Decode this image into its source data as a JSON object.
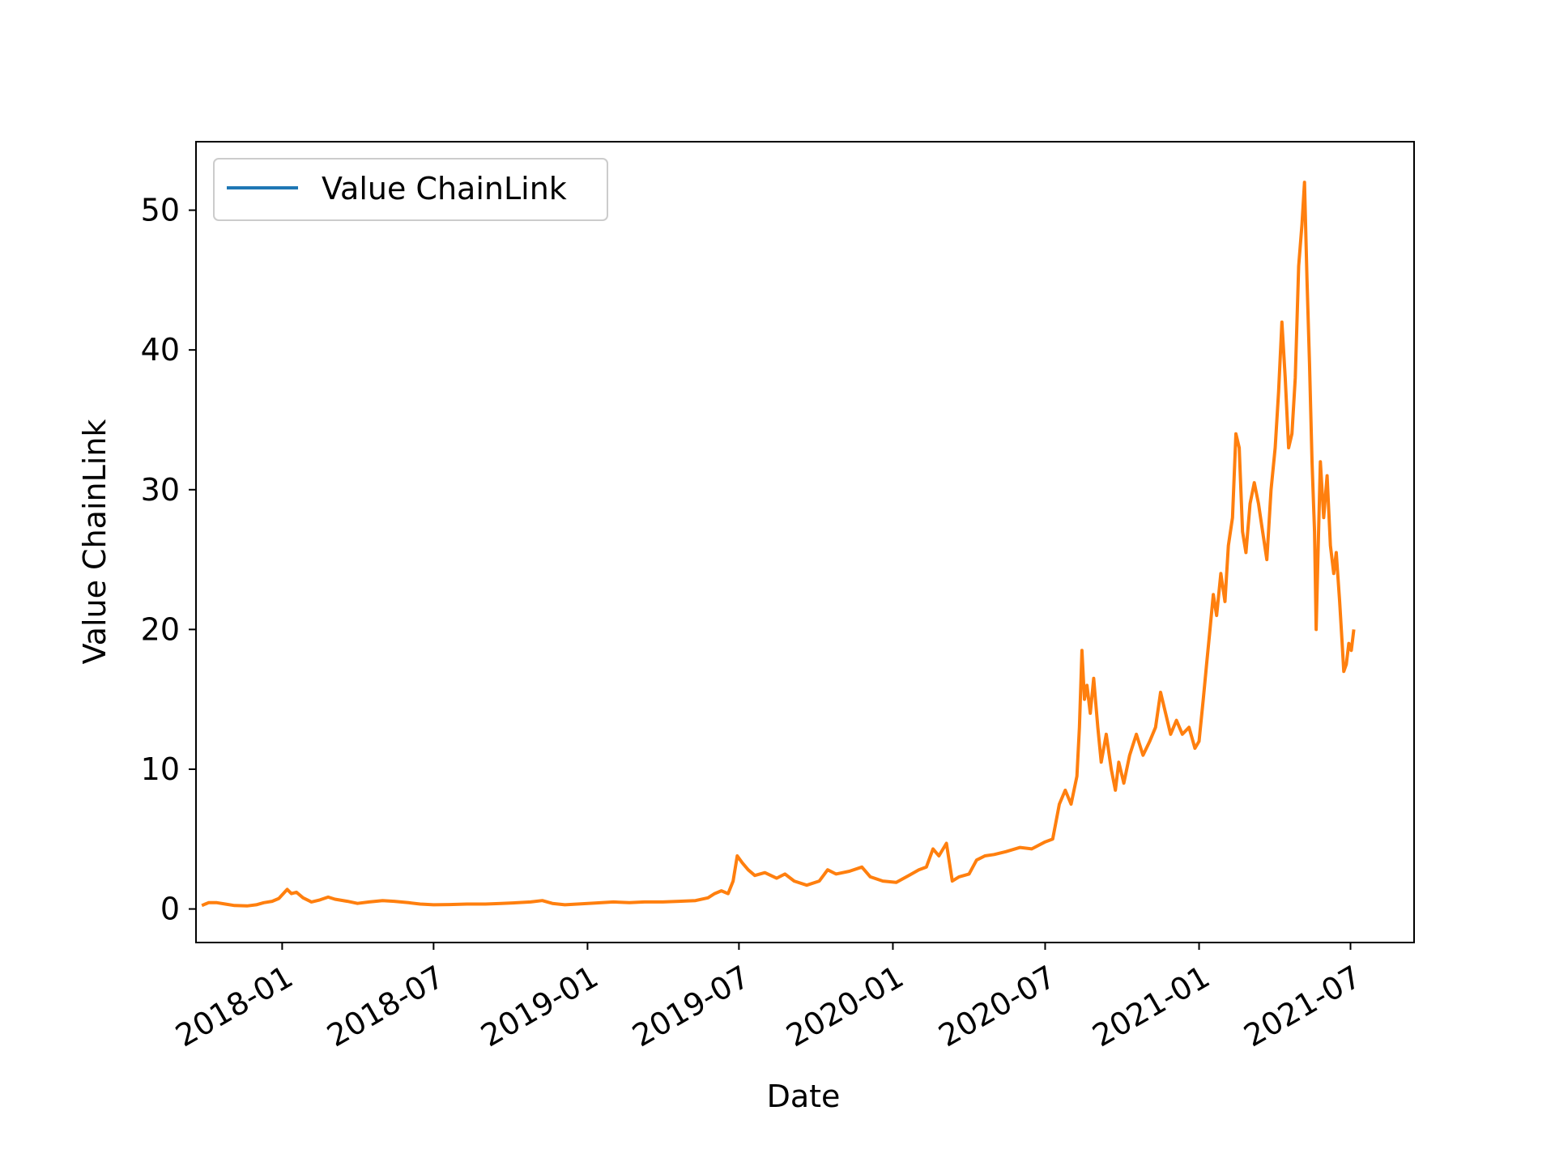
{
  "colors": {
    "legend_line": "#1f77b4",
    "series_line": "#ff7f0e",
    "axis": "#000000",
    "background": "#ffffff"
  },
  "chart_data": {
    "type": "line",
    "title": "",
    "xlabel": "Date",
    "ylabel": "Value ChainLink",
    "x_scale": "date",
    "xlim": [
      "2017-09-20",
      "2021-09-15"
    ],
    "ylim": [
      -2.4,
      54.9
    ],
    "x_ticks": [
      "2018-01",
      "2018-07",
      "2019-01",
      "2019-07",
      "2020-01",
      "2020-07",
      "2021-01",
      "2021-07"
    ],
    "y_ticks": [
      0,
      10,
      20,
      30,
      40,
      50
    ],
    "grid": false,
    "legend": {
      "position": "top-left",
      "entries": [
        "Value ChainLink"
      ]
    },
    "series": [
      {
        "name": "Value ChainLink",
        "points": [
          [
            "2017-09-27",
            0.25
          ],
          [
            "2017-10-05",
            0.45
          ],
          [
            "2017-10-15",
            0.45
          ],
          [
            "2017-10-25",
            0.35
          ],
          [
            "2017-11-05",
            0.25
          ],
          [
            "2017-11-20",
            0.22
          ],
          [
            "2017-12-01",
            0.3
          ],
          [
            "2017-12-10",
            0.45
          ],
          [
            "2017-12-20",
            0.55
          ],
          [
            "2017-12-28",
            0.75
          ],
          [
            "2018-01-07",
            1.4
          ],
          [
            "2018-01-12",
            1.1
          ],
          [
            "2018-01-18",
            1.2
          ],
          [
            "2018-01-26",
            0.8
          ],
          [
            "2018-02-05",
            0.5
          ],
          [
            "2018-02-15",
            0.65
          ],
          [
            "2018-02-25",
            0.85
          ],
          [
            "2018-03-05",
            0.7
          ],
          [
            "2018-03-20",
            0.55
          ],
          [
            "2018-04-01",
            0.4
          ],
          [
            "2018-04-15",
            0.5
          ],
          [
            "2018-05-01",
            0.6
          ],
          [
            "2018-05-15",
            0.55
          ],
          [
            "2018-06-01",
            0.45
          ],
          [
            "2018-06-15",
            0.35
          ],
          [
            "2018-07-01",
            0.3
          ],
          [
            "2018-07-20",
            0.32
          ],
          [
            "2018-08-10",
            0.35
          ],
          [
            "2018-09-01",
            0.35
          ],
          [
            "2018-09-20",
            0.4
          ],
          [
            "2018-10-10",
            0.45
          ],
          [
            "2018-10-25",
            0.5
          ],
          [
            "2018-11-08",
            0.6
          ],
          [
            "2018-11-20",
            0.4
          ],
          [
            "2018-12-05",
            0.3
          ],
          [
            "2018-12-20",
            0.35
          ],
          [
            "2019-01-10",
            0.42
          ],
          [
            "2019-02-01",
            0.5
          ],
          [
            "2019-02-20",
            0.45
          ],
          [
            "2019-03-10",
            0.5
          ],
          [
            "2019-04-01",
            0.5
          ],
          [
            "2019-04-20",
            0.55
          ],
          [
            "2019-05-10",
            0.6
          ],
          [
            "2019-05-25",
            0.8
          ],
          [
            "2019-06-02",
            1.1
          ],
          [
            "2019-06-10",
            1.3
          ],
          [
            "2019-06-18",
            1.1
          ],
          [
            "2019-06-24",
            2.0
          ],
          [
            "2019-06-29",
            3.8
          ],
          [
            "2019-07-05",
            3.3
          ],
          [
            "2019-07-12",
            2.8
          ],
          [
            "2019-07-20",
            2.4
          ],
          [
            "2019-08-01",
            2.6
          ],
          [
            "2019-08-15",
            2.2
          ],
          [
            "2019-08-25",
            2.5
          ],
          [
            "2019-09-05",
            2.0
          ],
          [
            "2019-09-20",
            1.7
          ],
          [
            "2019-10-05",
            2.0
          ],
          [
            "2019-10-15",
            2.8
          ],
          [
            "2019-10-25",
            2.5
          ],
          [
            "2019-11-10",
            2.7
          ],
          [
            "2019-11-25",
            3.0
          ],
          [
            "2019-12-05",
            2.3
          ],
          [
            "2019-12-20",
            2.0
          ],
          [
            "2020-01-05",
            1.9
          ],
          [
            "2020-01-20",
            2.4
          ],
          [
            "2020-02-01",
            2.8
          ],
          [
            "2020-02-10",
            3.0
          ],
          [
            "2020-02-18",
            4.3
          ],
          [
            "2020-02-25",
            3.8
          ],
          [
            "2020-03-05",
            4.7
          ],
          [
            "2020-03-12",
            2.0
          ],
          [
            "2020-03-20",
            2.3
          ],
          [
            "2020-04-01",
            2.5
          ],
          [
            "2020-04-10",
            3.5
          ],
          [
            "2020-04-20",
            3.8
          ],
          [
            "2020-05-01",
            3.9
          ],
          [
            "2020-05-15",
            4.1
          ],
          [
            "2020-06-01",
            4.4
          ],
          [
            "2020-06-15",
            4.3
          ],
          [
            "2020-07-01",
            4.8
          ],
          [
            "2020-07-10",
            5.0
          ],
          [
            "2020-07-18",
            7.5
          ],
          [
            "2020-07-25",
            8.5
          ],
          [
            "2020-08-01",
            7.5
          ],
          [
            "2020-08-08",
            9.5
          ],
          [
            "2020-08-11",
            13.0
          ],
          [
            "2020-08-14",
            18.5
          ],
          [
            "2020-08-17",
            15.0
          ],
          [
            "2020-08-20",
            16.0
          ],
          [
            "2020-08-24",
            14.0
          ],
          [
            "2020-08-28",
            16.5
          ],
          [
            "2020-09-02",
            13.0
          ],
          [
            "2020-09-06",
            10.5
          ],
          [
            "2020-09-12",
            12.5
          ],
          [
            "2020-09-18",
            10.0
          ],
          [
            "2020-09-23",
            8.5
          ],
          [
            "2020-09-27",
            10.5
          ],
          [
            "2020-10-03",
            9.0
          ],
          [
            "2020-10-10",
            11.0
          ],
          [
            "2020-10-18",
            12.5
          ],
          [
            "2020-10-26",
            11.0
          ],
          [
            "2020-11-03",
            12.0
          ],
          [
            "2020-11-10",
            13.0
          ],
          [
            "2020-11-16",
            15.5
          ],
          [
            "2020-11-22",
            14.0
          ],
          [
            "2020-11-28",
            12.5
          ],
          [
            "2020-12-05",
            13.5
          ],
          [
            "2020-12-12",
            12.5
          ],
          [
            "2020-12-20",
            13.0
          ],
          [
            "2020-12-27",
            11.5
          ],
          [
            "2021-01-01",
            12.0
          ],
          [
            "2021-01-06",
            15.0
          ],
          [
            "2021-01-10",
            17.5
          ],
          [
            "2021-01-14",
            20.0
          ],
          [
            "2021-01-18",
            22.5
          ],
          [
            "2021-01-22",
            21.0
          ],
          [
            "2021-01-27",
            24.0
          ],
          [
            "2021-02-01",
            22.0
          ],
          [
            "2021-02-05",
            26.0
          ],
          [
            "2021-02-10",
            28.0
          ],
          [
            "2021-02-14",
            34.0
          ],
          [
            "2021-02-18",
            33.0
          ],
          [
            "2021-02-22",
            27.0
          ],
          [
            "2021-02-26",
            25.5
          ],
          [
            "2021-03-03",
            29.0
          ],
          [
            "2021-03-08",
            30.5
          ],
          [
            "2021-03-13",
            29.0
          ],
          [
            "2021-03-18",
            27.0
          ],
          [
            "2021-03-23",
            25.0
          ],
          [
            "2021-03-28",
            30.0
          ],
          [
            "2021-04-02",
            33.0
          ],
          [
            "2021-04-06",
            37.0
          ],
          [
            "2021-04-10",
            42.0
          ],
          [
            "2021-04-14",
            38.0
          ],
          [
            "2021-04-18",
            33.0
          ],
          [
            "2021-04-22",
            34.0
          ],
          [
            "2021-04-26",
            38.0
          ],
          [
            "2021-04-30",
            46.0
          ],
          [
            "2021-05-04",
            49.0
          ],
          [
            "2021-05-07",
            52.0
          ],
          [
            "2021-05-10",
            45.0
          ],
          [
            "2021-05-13",
            39.0
          ],
          [
            "2021-05-16",
            32.0
          ],
          [
            "2021-05-19",
            27.0
          ],
          [
            "2021-05-21",
            20.0
          ],
          [
            "2021-05-23",
            25.0
          ],
          [
            "2021-05-26",
            32.0
          ],
          [
            "2021-05-30",
            28.0
          ],
          [
            "2021-06-03",
            31.0
          ],
          [
            "2021-06-07",
            26.0
          ],
          [
            "2021-06-11",
            24.0
          ],
          [
            "2021-06-14",
            25.5
          ],
          [
            "2021-06-18",
            22.0
          ],
          [
            "2021-06-21",
            19.0
          ],
          [
            "2021-06-23",
            17.0
          ],
          [
            "2021-06-26",
            17.5
          ],
          [
            "2021-06-29",
            19.0
          ],
          [
            "2021-07-02",
            18.5
          ],
          [
            "2021-07-05",
            20.0
          ]
        ]
      }
    ]
  }
}
